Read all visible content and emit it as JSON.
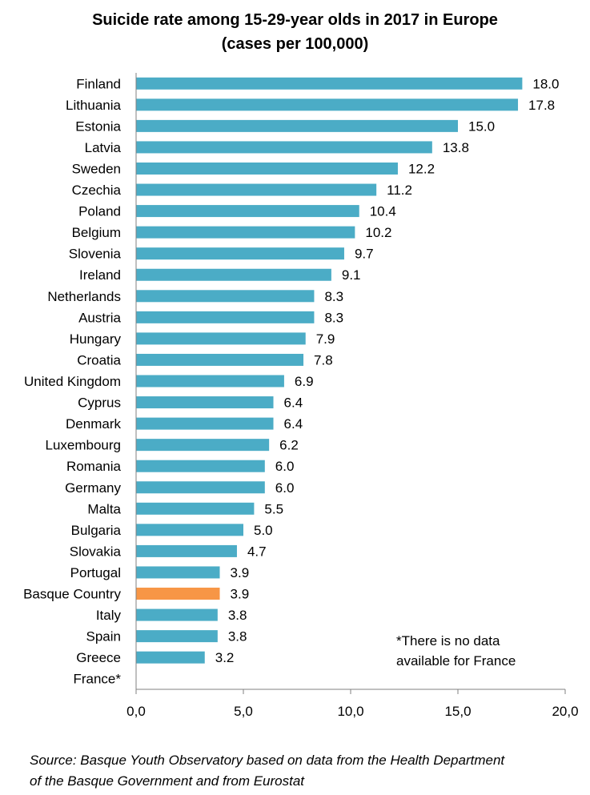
{
  "chart_data": {
    "type": "bar",
    "orientation": "horizontal",
    "title": "Suicide rate among 15-29-year olds in 2017 in Europe",
    "subtitle": "(cases per 100,000)",
    "categories": [
      "Finland",
      "Lithuania",
      "Estonia",
      "Latvia",
      "Sweden",
      "Czechia",
      "Poland",
      "Belgium",
      "Slovenia",
      "Ireland",
      "Netherlands",
      "Austria",
      "Hungary",
      "Croatia",
      "United Kingdom",
      "Cyprus",
      "Denmark",
      "Luxembourg",
      "Romania",
      "Germany",
      "Malta",
      "Bulgaria",
      "Slovakia",
      "Portugal",
      "Basque Country",
      "Italy",
      "Spain",
      "Greece",
      "France*"
    ],
    "values": [
      18.0,
      17.8,
      15.0,
      13.8,
      12.2,
      11.2,
      10.4,
      10.2,
      9.7,
      9.1,
      8.3,
      8.3,
      7.9,
      7.8,
      6.9,
      6.4,
      6.4,
      6.2,
      6.0,
      6.0,
      5.5,
      5.0,
      4.7,
      3.9,
      3.9,
      3.8,
      3.8,
      3.2,
      null
    ],
    "value_labels": [
      "18.0",
      "17.8",
      "15.0",
      "13.8",
      "12.2",
      "11.2",
      "10.4",
      "10.2",
      "9.7",
      "9.1",
      "8.3",
      "8.3",
      "7.9",
      "7.8",
      "6.9",
      "6.4",
      "6.4",
      "6.2",
      "6.0",
      "6.0",
      "5.5",
      "5.0",
      "4.7",
      "3.9",
      "3.9",
      "3.8",
      "3.8",
      "3.2",
      ""
    ],
    "highlight_category": "Basque Country",
    "xlim": [
      0,
      20
    ],
    "xticks": [
      "0,0",
      "5,0",
      "10,0",
      "15,0",
      "20,0"
    ],
    "xtick_values": [
      0,
      5,
      10,
      15,
      20
    ],
    "grid": false,
    "colors": {
      "bar": "#4bacc6",
      "highlight": "#f79646",
      "axis": "#808080"
    }
  },
  "note": [
    "*There is no data",
    "available for France"
  ],
  "source": [
    "Source: Basque Youth Observatory based on data from the Health Department",
    "of the Basque Government and from Eurostat"
  ]
}
